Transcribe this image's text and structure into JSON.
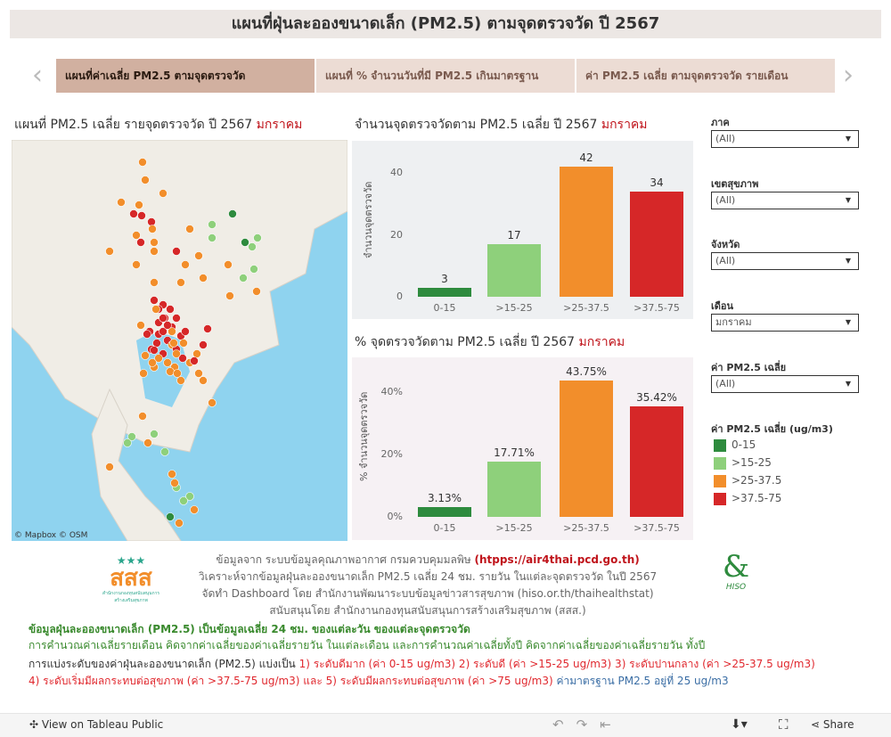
{
  "title": "แผนที่ฝุ่นละอองขนาดเล็ก (PM2.5) ตามจุดตรวจวัด ปี 2567",
  "nav": {
    "prev": "‹",
    "next": "›"
  },
  "tabs": [
    {
      "label": "แผนที่ค่าเฉลี่ย PM2.5 ตามจุดตรวจวัด",
      "active": true
    },
    {
      "label": "แผนที่ % จำนวนวันที่มี PM2.5 เกินมาตรฐาน",
      "active": false
    },
    {
      "label": "ค่า PM2.5 เฉลี่ย ตามจุดตรวจวัด รายเดือน",
      "active": false
    }
  ],
  "map": {
    "title": "แผนที่ PM2.5 เฉลี่ย รายจุดตรวจวัด ปี 2567",
    "month": "มกราคม",
    "attribution": "© Mapbox  © OSM"
  },
  "colors": {
    "0-15": "#2e8b3e",
    "15-25": "#8ed07b",
    "25-37.5": "#f28e2b",
    "37.5-75": "#d62728",
    "month": "#c0141b"
  },
  "chart_data": [
    {
      "type": "bar",
      "title": "จำนวนจุดตรวจวัดตาม PM2.5 เฉลี่ย ปี 2567",
      "title_highlight": "มกราคม",
      "ylabel": "จำนวนจุดตรวจวัด",
      "categories": [
        "0-15",
        ">15-25",
        ">25-37.5",
        ">37.5-75"
      ],
      "values": [
        3,
        17,
        42,
        34
      ],
      "value_labels": [
        "3",
        "17",
        "42",
        "34"
      ],
      "yticks": [
        "0",
        "20",
        "40"
      ],
      "ylim": [
        0,
        46
      ],
      "grid": false
    },
    {
      "type": "bar",
      "title": "% จุดตรวจวัดตาม PM2.5 เฉลี่ย ปี 2567",
      "title_highlight": "มกราคม",
      "ylabel": "% จำนวนจุดตรวจวัด",
      "categories": [
        "0-15",
        ">15-25",
        ">25-37.5",
        ">37.5-75"
      ],
      "values": [
        3.13,
        17.71,
        43.75,
        35.42
      ],
      "value_labels": [
        "3.13%",
        "17.71%",
        "43.75%",
        "35.42%"
      ],
      "yticks": [
        "0%",
        "20%",
        "40%"
      ],
      "ylim": [
        0,
        48
      ],
      "grid": false
    }
  ],
  "filters": [
    {
      "label": "ภาค",
      "value": "(All)"
    },
    {
      "label": "เขตสุขภาพ",
      "value": "(All)"
    },
    {
      "label": "จังหวัด",
      "value": "(All)"
    },
    {
      "label": "เดือน",
      "value": "มกราคม"
    },
    {
      "label": "ค่า PM2.5 เฉลี่ย",
      "value": "(All)"
    }
  ],
  "legend": {
    "title": "ค่า PM2.5 เฉลี่ย (ug/m3)",
    "items": [
      "0-15",
      ">15-25",
      ">25-37.5",
      ">37.5-75"
    ]
  },
  "credits": {
    "line1": "ข้อมูลจาก ระบบข้อมูลคุณภาพอากาศ กรมควบคุมมลพิษ ",
    "line1_link": "(htpps://air4thai.pcd.go.th)",
    "line2": "วิเคราะห์จากข้อมูลฝุ่นละอองขนาดเล็ก PM2.5 เฉลี่ย 24 ชม. รายวัน ในแต่ละจุดตรวจวัด ในปี 2567",
    "line3": "จัดทำ Dashboard โดย สำนักงานพัฒนาระบบข้อมูลข่าวสารสุขภาพ (hiso.or.th/thaihealthstat)",
    "line4": "สนับสนุนโดย สำนักงานกองทุนสนับสนุนการสร้างเสริมสุขภาพ (สสส.)",
    "logo_left": "สสส",
    "logo_left_sub": "สำนักงานกองทุนสนับสนุนการสร้างเสริมสุขภาพ",
    "logo_right": "HISO"
  },
  "notes": {
    "n1": "ข้อมูลฝุ่นละอองขนาดเล็ก (PM2.5) เป็นข้อมูลเฉลี่ย 24 ชม. ของแต่ละวัน ของแต่ละจุดตรวจวัด",
    "n2": "การคำนวณค่าเฉลี่ยรายเดือน คิดจากค่าเฉลี่ยของค่าเฉลี่ยรายวัน ในแต่ละเดือน และการคำนวณค่าเฉลี่ยทั้งปี คิดจากค่าเฉลี่ยของค่าเฉลี่ยรายวัน ทั้งปี",
    "n3a": "การแบ่งระดับของค่าฝุ่นละอองขนาดเล็ก (PM2.5) แบ่งเป็น ",
    "n3b": "1) ระดับดีมาก (ค่า 0-15 ug/m3) 2) ระดับดี (ค่า >15-25 ug/m3) 3) ระดับปานกลาง (ค่า >25-37.5 ug/m3)",
    "n4a": "4) ระดับเริ่มมีผลกระทบต่อสุขภาพ (ค่า >37.5-75 ug/m3) และ 5) ระดับมีผลกระทบต่อสุขภาพ (ค่า >75 ug/m3) ",
    "n4b": "ค่ามาตรฐาน PM2.5 อยู่ที่ 25 ug/m3"
  },
  "footer": {
    "view": "View on Tableau Public",
    "share": "Share"
  }
}
